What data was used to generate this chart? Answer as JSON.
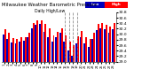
{
  "title": "Milwaukee Weather Barometric Pressure",
  "subtitle": "Daily High/Low",
  "legend_high": "High",
  "legend_low": "Low",
  "color_high": "#FF0000",
  "color_low": "#0000BB",
  "background_color": "#FFFFFF",
  "plot_bg": "#FFFFFF",
  "ylim": [
    29.0,
    30.8
  ],
  "yticks": [
    29.0,
    29.2,
    29.4,
    29.6,
    29.8,
    30.0,
    30.2,
    30.4,
    30.6,
    30.8
  ],
  "dashed_indices": [
    15,
    16,
    17,
    18
  ],
  "bar_width": 0.42,
  "dates": [
    "1",
    "2",
    "3",
    "4",
    "5",
    "6",
    "7",
    "8",
    "9",
    "10",
    "11",
    "12",
    "13",
    "14",
    "15",
    "16",
    "17",
    "18",
    "19",
    "20",
    "21",
    "22",
    "23",
    "24",
    "25",
    "26",
    "27",
    "28"
  ],
  "high": [
    30.18,
    30.05,
    29.85,
    29.82,
    29.88,
    29.9,
    30.05,
    30.42,
    30.5,
    30.52,
    30.38,
    30.2,
    29.95,
    30.1,
    30.22,
    29.95,
    29.72,
    29.6,
    29.92,
    30.12,
    29.88,
    29.82,
    30.05,
    30.38,
    30.42,
    30.35,
    30.28,
    30.4
  ],
  "low": [
    30.0,
    29.82,
    29.7,
    29.68,
    29.72,
    29.76,
    29.88,
    30.22,
    30.35,
    30.38,
    30.1,
    29.9,
    29.72,
    29.88,
    30.05,
    29.72,
    29.42,
    29.2,
    29.65,
    29.88,
    29.65,
    29.55,
    29.82,
    30.15,
    30.22,
    30.18,
    30.05,
    30.18
  ],
  "title_fontsize": 3.8,
  "tick_fontsize": 3.2,
  "xtick_fontsize": 2.6,
  "legend_fontsize": 3.0
}
